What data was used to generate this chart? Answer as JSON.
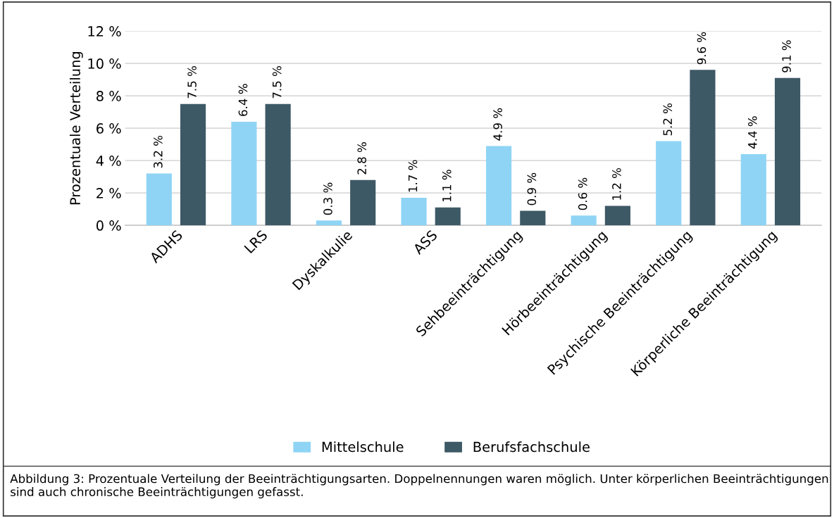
{
  "chart_data": {
    "type": "bar",
    "ylabel": "Prozentuale Verteilung",
    "categories": [
      "ADHS",
      "LRS",
      "Dyskalkulie",
      "ASS",
      "Sehbeeinträchtigung",
      "Hörbeeinträchtigung",
      "Psychische Beeinträchtigung",
      "Körperliche Beeinträchtigung"
    ],
    "series": [
      {
        "name": "Mittelschule",
        "color": "#8fd4f5",
        "values": [
          3.2,
          6.4,
          0.3,
          1.7,
          4.9,
          0.6,
          5.2,
          4.4
        ],
        "value_labels": [
          "3.2 %",
          "6.4 %",
          "0.3 %",
          "1.7 %",
          "4.9 %",
          "0.6 %",
          "5.2 %",
          "4.4 %"
        ]
      },
      {
        "name": "Berufsfachschule",
        "color": "#3e5966",
        "values": [
          7.5,
          7.5,
          2.8,
          1.1,
          0.9,
          1.2,
          9.6,
          9.1
        ],
        "value_labels": [
          "7.5 %",
          "7.5 %",
          "2.8 %",
          "1.1 %",
          "0.9 %",
          "1.2 %",
          "9.6 %",
          "9.1 %"
        ]
      }
    ],
    "ylim": [
      0,
      12
    ],
    "yticks": [
      {
        "value": 0,
        "label": "0 %"
      },
      {
        "value": 2,
        "label": "2 %"
      },
      {
        "value": 4,
        "label": "4 %"
      },
      {
        "value": 6,
        "label": "6 %"
      },
      {
        "value": 8,
        "label": "8 %"
      },
      {
        "value": 10,
        "label": "10 %"
      },
      {
        "value": 12,
        "label": "12 %"
      }
    ],
    "grid": "y",
    "legend": "bottom",
    "annotations": [
      "Abbildung 3: Prozentuale Verteilung der Beeinträchtigungsarten. Doppelnennungen waren möglich. Unter körperlichen Beeinträchtigungen sind auch chronische Beeinträchtigungen gefasst."
    ]
  }
}
